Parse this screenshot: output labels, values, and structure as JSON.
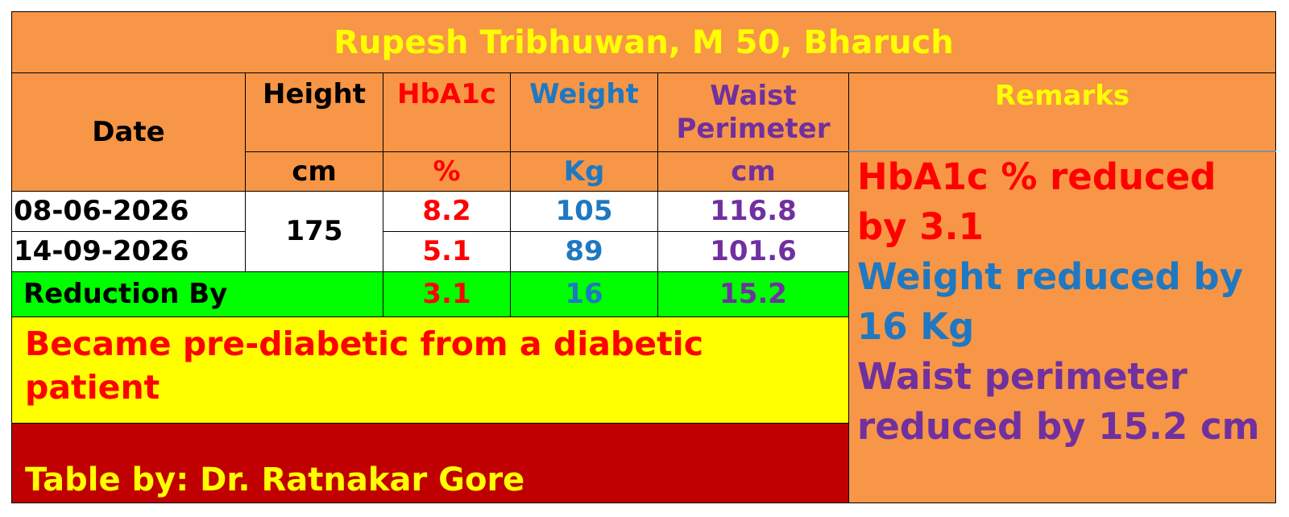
{
  "title": "Rupesh Tribhuwan, M 50, Bharuch",
  "headers": {
    "date": "Date",
    "height": "Height",
    "hba1c": "HbA1c",
    "weight": "Weight",
    "waist": "Waist Perimeter",
    "remarks": "Remarks"
  },
  "units": {
    "height": "cm",
    "hba1c": "%",
    "weight": "Kg",
    "waist": "cm"
  },
  "height": 175,
  "rows": [
    {
      "date": "08-06-2026",
      "hba1c": 8.2,
      "weight": 105,
      "waist": 116.8
    },
    {
      "date": "14-09-2026",
      "hba1c": 5.1,
      "weight": 89,
      "waist": 101.6
    }
  ],
  "reduction": {
    "label": "Reduction By",
    "hba1c": 3.1,
    "weight": 16,
    "waist": 15.2
  },
  "note": "Became pre-diabetic from a diabetic patient",
  "credit": "Table by: Dr. Ratnakar Gore",
  "remarks": [
    "HbA1c % reduced by 3.1",
    "Weight reduced by 16 Kg",
    "Waist perimeter reduced by 15.2 cm"
  ]
}
